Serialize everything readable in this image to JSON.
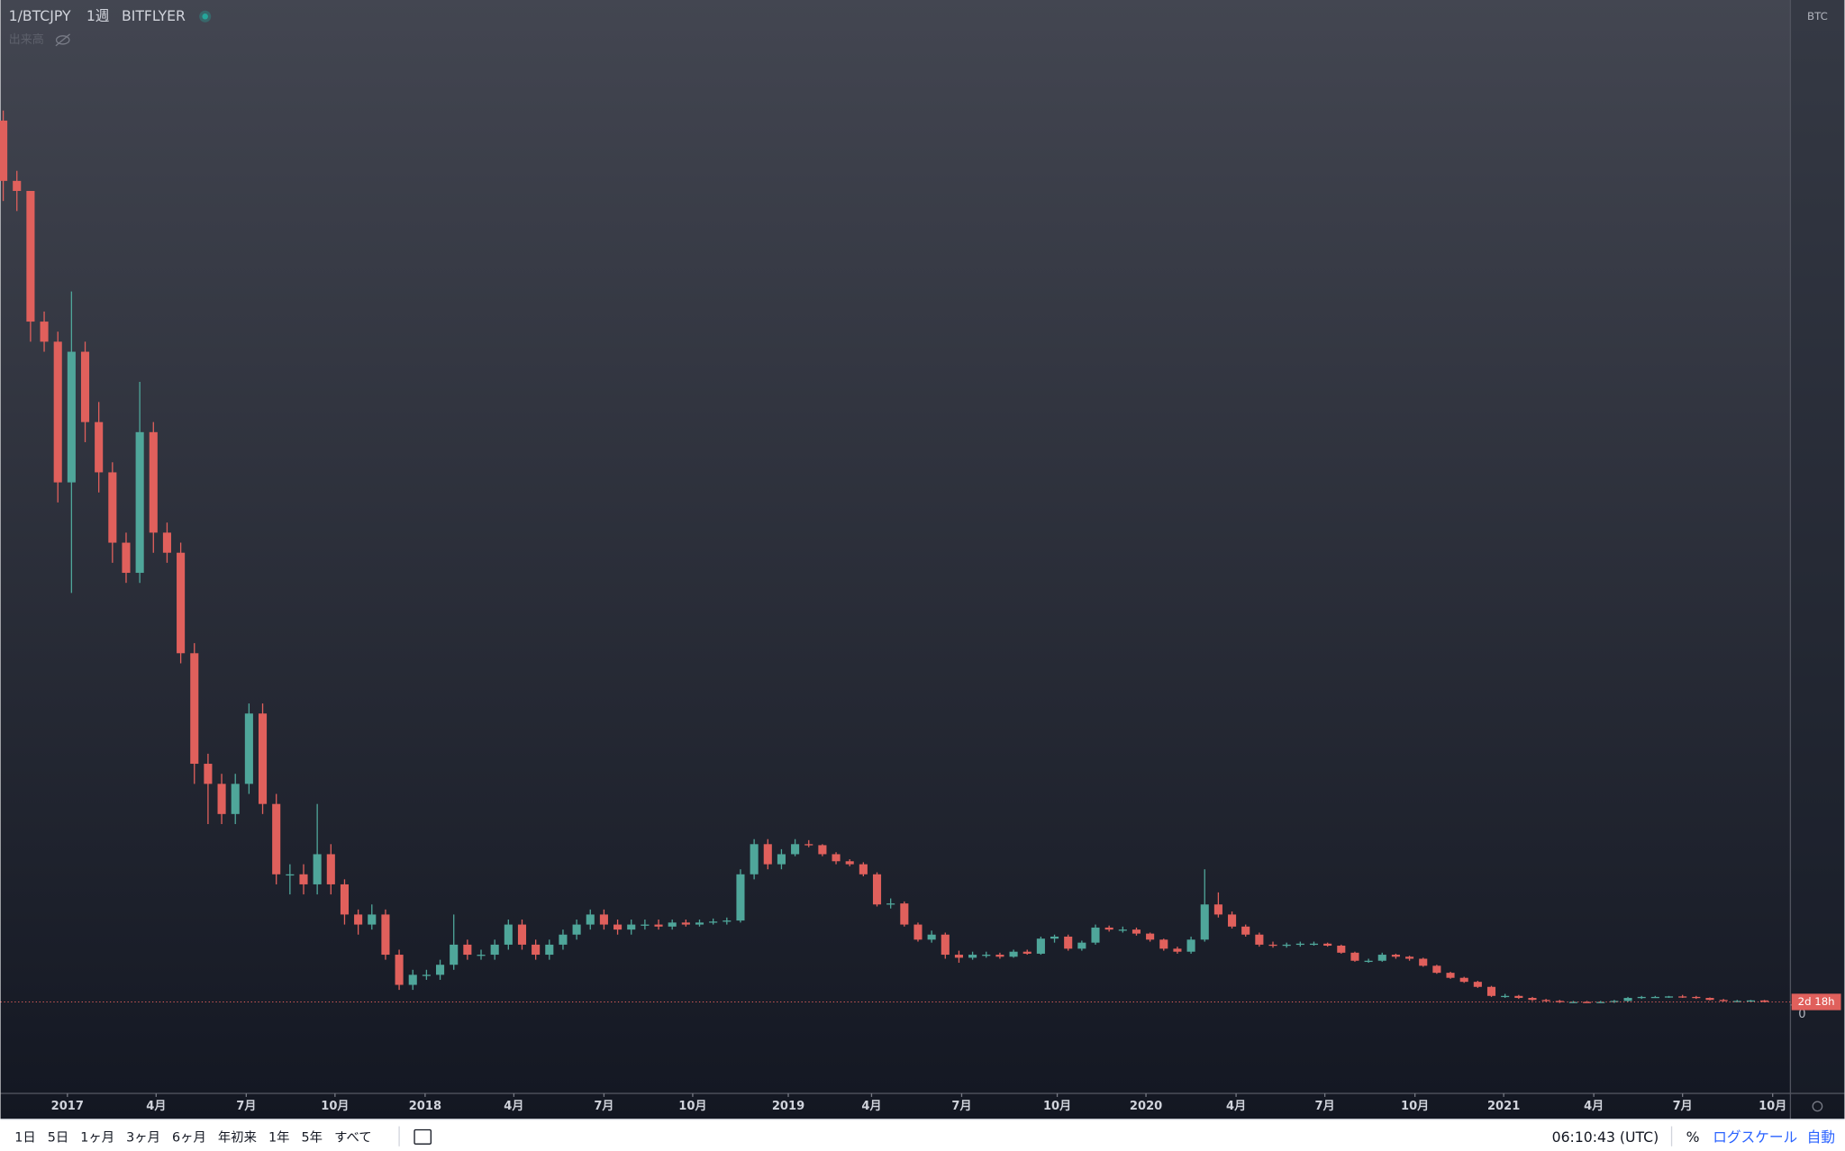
{
  "header": {
    "symbol": "1/BTCJPY",
    "interval": "1週",
    "exchange": "BITFLYER",
    "volume_label": "出来高"
  },
  "price_axis": {
    "unit": "BTC",
    "countdown": "2d 18h"
  },
  "chart_data": {
    "type": "candlestick",
    "up_color": "#4fa69a",
    "down_color": "#e0605c",
    "xlim": [
      -0.2,
      130.9
    ],
    "ylim": [
      -8.8,
      100
    ],
    "yticks": [
      0
    ],
    "xticks": [
      {
        "value": 4.7,
        "label": "2017"
      },
      {
        "value": 11.2,
        "label": "4月"
      },
      {
        "value": 17.8,
        "label": "7月"
      },
      {
        "value": 24.3,
        "label": "10月"
      },
      {
        "value": 30.9,
        "label": "2018"
      },
      {
        "value": 37.4,
        "label": "4月"
      },
      {
        "value": 44,
        "label": "7月"
      },
      {
        "value": 50.5,
        "label": "10月"
      },
      {
        "value": 57.5,
        "label": "2019"
      },
      {
        "value": 63.6,
        "label": "4月"
      },
      {
        "value": 70.2,
        "label": "7月"
      },
      {
        "value": 77.2,
        "label": "10月"
      },
      {
        "value": 83.7,
        "label": "2020"
      },
      {
        "value": 90.3,
        "label": "4月"
      },
      {
        "value": 96.8,
        "label": "7月"
      },
      {
        "value": 103.4,
        "label": "10月"
      },
      {
        "value": 109.9,
        "label": "2021"
      },
      {
        "value": 116.5,
        "label": "4月"
      },
      {
        "value": 123,
        "label": "7月"
      },
      {
        "value": 129.6,
        "label": "10月"
      }
    ],
    "ohlc": [
      [
        88,
        89,
        80,
        82
      ],
      [
        82,
        83,
        79,
        81
      ],
      [
        81,
        81,
        66,
        68
      ],
      [
        68,
        69,
        65,
        66
      ],
      [
        66,
        67,
        50,
        52
      ],
      [
        52,
        71,
        41,
        65
      ],
      [
        65,
        66,
        56,
        58
      ],
      [
        58,
        60,
        51,
        53
      ],
      [
        53,
        54,
        44,
        46
      ],
      [
        46,
        47,
        42,
        43
      ],
      [
        43,
        62,
        42,
        57
      ],
      [
        57,
        58,
        45,
        47
      ],
      [
        47,
        48,
        44,
        45
      ],
      [
        45,
        46,
        34,
        35
      ],
      [
        35,
        36,
        22,
        24
      ],
      [
        24,
        25,
        18,
        22
      ],
      [
        22,
        23,
        18,
        19
      ],
      [
        19,
        23,
        18,
        22
      ],
      [
        22,
        30,
        21,
        29
      ],
      [
        29,
        30,
        19,
        20
      ],
      [
        20,
        21,
        12,
        13
      ],
      [
        13,
        14,
        11,
        13
      ],
      [
        13,
        14,
        11,
        12
      ],
      [
        12,
        20,
        11,
        15
      ],
      [
        15,
        16,
        11,
        12
      ],
      [
        12,
        12.5,
        8,
        9
      ],
      [
        9,
        9.5,
        7,
        8
      ],
      [
        8,
        10,
        7.5,
        9
      ],
      [
        9,
        9.5,
        4.5,
        5
      ],
      [
        5,
        5.5,
        1.5,
        2
      ],
      [
        2,
        3.5,
        1.5,
        3
      ],
      [
        3,
        3.5,
        2.5,
        3
      ],
      [
        3,
        4.5,
        2.5,
        4
      ],
      [
        4,
        9,
        3.5,
        6
      ],
      [
        6,
        6.5,
        4.5,
        5
      ],
      [
        5,
        5.5,
        4.5,
        5
      ],
      [
        5,
        6.5,
        4.5,
        6
      ],
      [
        6,
        8.5,
        5.5,
        8
      ],
      [
        8,
        8.5,
        5.5,
        6
      ],
      [
        6,
        6.5,
        4.5,
        5
      ],
      [
        5,
        6.5,
        4.5,
        6
      ],
      [
        6,
        7.5,
        5.5,
        7
      ],
      [
        7,
        8.5,
        6.5,
        8
      ],
      [
        8,
        9.5,
        7.5,
        9
      ],
      [
        9,
        9.5,
        7.5,
        8
      ],
      [
        8,
        8.5,
        7,
        7.5
      ],
      [
        7.5,
        8.5,
        7,
        8
      ],
      [
        8,
        8.5,
        7.5,
        8
      ],
      [
        8,
        8.5,
        7.5,
        7.8
      ],
      [
        7.8,
        8.5,
        7.5,
        8.2
      ],
      [
        8.2,
        8.5,
        7.8,
        8
      ],
      [
        8,
        8.5,
        7.8,
        8.2
      ],
      [
        8.2,
        8.6,
        8,
        8.3
      ],
      [
        8.3,
        8.7,
        8,
        8.4
      ],
      [
        8.4,
        13.5,
        8.2,
        13
      ],
      [
        13,
        16.5,
        12.5,
        16
      ],
      [
        16,
        16.5,
        13.5,
        14
      ],
      [
        14,
        15.5,
        13.5,
        15
      ],
      [
        15,
        16.5,
        14.8,
        16
      ],
      [
        16,
        16.4,
        15.7,
        15.9
      ],
      [
        15.9,
        16,
        14.8,
        15
      ],
      [
        15,
        15.2,
        14,
        14.3
      ],
      [
        14.3,
        14.5,
        13.8,
        14
      ],
      [
        14,
        14.2,
        12.8,
        13
      ],
      [
        13,
        13.2,
        9.8,
        10
      ],
      [
        10,
        10.6,
        9.6,
        10.1
      ],
      [
        10.1,
        10.3,
        7.8,
        8
      ],
      [
        8,
        8.2,
        6.3,
        6.5
      ],
      [
        6.5,
        7.4,
        6.2,
        7
      ],
      [
        7,
        7.2,
        4.6,
        5
      ],
      [
        5,
        5.4,
        4.2,
        4.7
      ],
      [
        4.7,
        5.3,
        4.5,
        5
      ],
      [
        5,
        5.3,
        4.7,
        5
      ],
      [
        5,
        5.2,
        4.6,
        4.8
      ],
      [
        4.8,
        5.5,
        4.7,
        5.3
      ],
      [
        5.3,
        5.5,
        5,
        5.1
      ],
      [
        5.1,
        6.8,
        5,
        6.6
      ],
      [
        6.6,
        7,
        6.2,
        6.8
      ],
      [
        6.8,
        7,
        5.4,
        5.6
      ],
      [
        5.6,
        6.4,
        5.4,
        6.2
      ],
      [
        6.2,
        8,
        6,
        7.7
      ],
      [
        7.7,
        7.9,
        7.3,
        7.5
      ],
      [
        7.5,
        7.8,
        7.2,
        7.5
      ],
      [
        7.5,
        7.7,
        6.9,
        7.1
      ],
      [
        7.1,
        7.2,
        6.3,
        6.5
      ],
      [
        6.5,
        6.6,
        5.4,
        5.6
      ],
      [
        5.6,
        5.8,
        5.1,
        5.3
      ],
      [
        5.3,
        6.8,
        5.1,
        6.5
      ],
      [
        6.5,
        13.5,
        6.3,
        10
      ],
      [
        10,
        11.2,
        8.7,
        9
      ],
      [
        9,
        9.3,
        7.6,
        7.8
      ],
      [
        7.8,
        8,
        6.8,
        7
      ],
      [
        7,
        7.2,
        5.8,
        6
      ],
      [
        6,
        6.3,
        5.7,
        5.9
      ],
      [
        5.9,
        6.2,
        5.7,
        6
      ],
      [
        6,
        6.3,
        5.8,
        6.1
      ],
      [
        6.1,
        6.3,
        5.9,
        6.1
      ],
      [
        6.1,
        6.2,
        5.8,
        5.9
      ],
      [
        5.9,
        6,
        5.1,
        5.2
      ],
      [
        5.2,
        5.3,
        4.3,
        4.4
      ],
      [
        4.4,
        4.6,
        4.2,
        4.4
      ],
      [
        4.4,
        5.2,
        4.3,
        5
      ],
      [
        5,
        5.1,
        4.6,
        4.8
      ],
      [
        4.8,
        4.9,
        4.4,
        4.6
      ],
      [
        4.6,
        4.7,
        3.8,
        3.9
      ],
      [
        3.9,
        4,
        3.1,
        3.2
      ],
      [
        3.2,
        3.3,
        2.6,
        2.7
      ],
      [
        2.7,
        2.8,
        2.2,
        2.3
      ],
      [
        2.3,
        2.4,
        1.7,
        1.8
      ],
      [
        1.8,
        1.9,
        0.8,
        0.9
      ],
      [
        0.9,
        1.1,
        0.7,
        0.9
      ],
      [
        0.9,
        1,
        0.6,
        0.7
      ],
      [
        0.7,
        0.8,
        0.4,
        0.5
      ],
      [
        0.5,
        0.6,
        0.3,
        0.4
      ],
      [
        0.4,
        0.5,
        0.2,
        0.3
      ],
      [
        0.3,
        0.4,
        0.2,
        0.3
      ],
      [
        0.3,
        0.4,
        0.2,
        0.25
      ],
      [
        0.25,
        0.4,
        0.2,
        0.3
      ],
      [
        0.3,
        0.5,
        0.2,
        0.4
      ],
      [
        0.4,
        0.8,
        0.3,
        0.7
      ],
      [
        0.7,
        0.9,
        0.6,
        0.8
      ],
      [
        0.8,
        0.9,
        0.7,
        0.8
      ],
      [
        0.8,
        0.9,
        0.7,
        0.85
      ],
      [
        0.85,
        1,
        0.7,
        0.8
      ],
      [
        0.8,
        0.9,
        0.6,
        0.7
      ],
      [
        0.7,
        0.75,
        0.45,
        0.5
      ],
      [
        0.5,
        0.6,
        0.35,
        0.4
      ],
      [
        0.4,
        0.5,
        0.3,
        0.4
      ],
      [
        0.4,
        0.5,
        0.3,
        0.45
      ],
      [
        0.45,
        0.5,
        0.25,
        0.3
      ]
    ]
  },
  "toolbar": {
    "ranges": [
      "1日",
      "5日",
      "1ヶ月",
      "3ヶ月",
      "6ヶ月",
      "年初来",
      "1年",
      "5年",
      "すべて"
    ],
    "time": "06:10:43 (UTC)",
    "percent": "%",
    "log_scale": "ログスケール",
    "auto": "自動"
  }
}
